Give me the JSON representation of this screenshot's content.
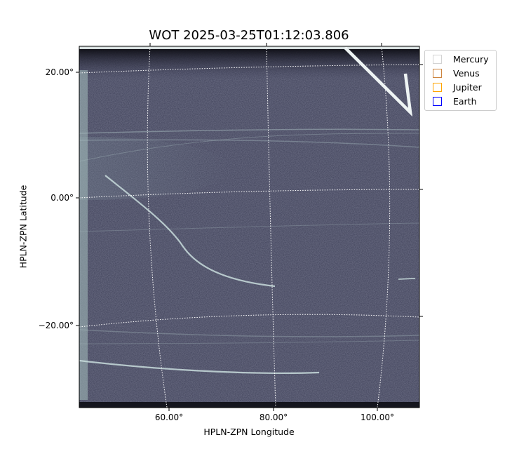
{
  "chart_data": {
    "type": "image",
    "title": "WOT 2025-03-25T01:12:03.806",
    "xlabel": "HPLN-ZPN Longitude",
    "ylabel": "HPLN-ZPN Latitude",
    "xticks": [
      "60.00°",
      "80.00°",
      "100.00°"
    ],
    "yticks": [
      "20.00°",
      "0.00°",
      "−20.00°"
    ],
    "grid": true,
    "colormap": "bone-like grayscale",
    "legend_placement": "outside-top-right",
    "legend": [
      {
        "name": "Mercury",
        "color": "#d3d3d3"
      },
      {
        "name": "Venus",
        "color": "#cd853f"
      },
      {
        "name": "Jupiter",
        "color": "#ffa500"
      },
      {
        "name": "Earth",
        "color": "#0000ff"
      }
    ]
  }
}
